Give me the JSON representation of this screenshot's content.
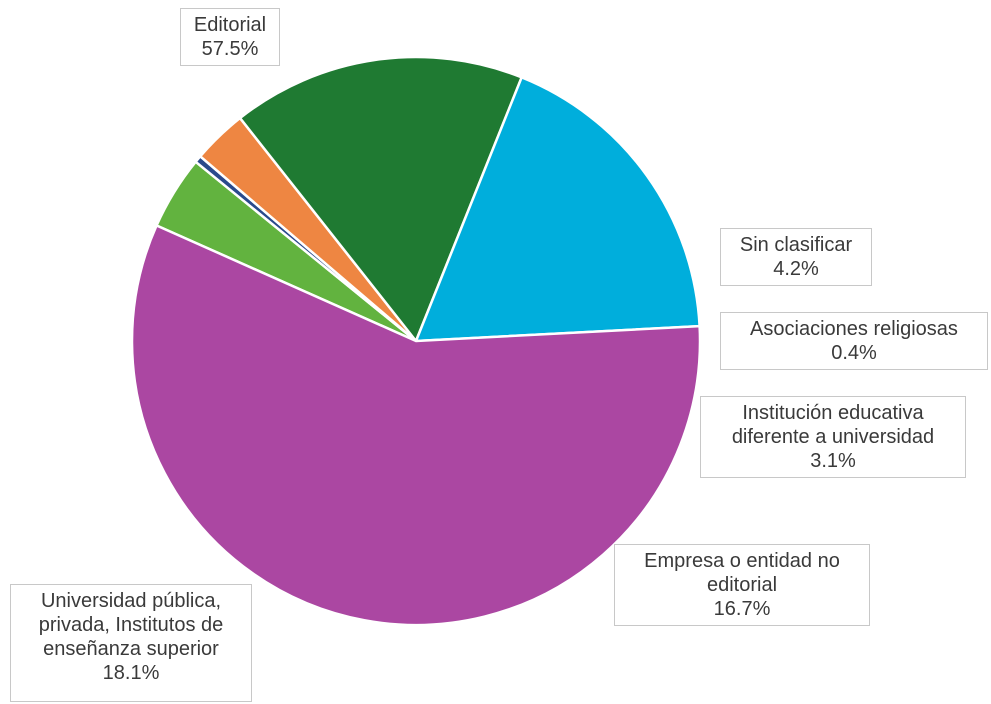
{
  "chart_data": {
    "type": "pie",
    "title": "",
    "start_angle_deg": 294,
    "direction": "clockwise",
    "slices": [
      {
        "label_lines": [
          "Sin clasificar"
        ],
        "value": 4.2,
        "value_text": "4.2%",
        "color": "#62b33f"
      },
      {
        "label_lines": [
          "Asociaciones religiosas"
        ],
        "value": 0.4,
        "value_text": "0.4%",
        "color": "#2a4a8c"
      },
      {
        "label_lines": [
          "Institución educativa",
          "diferente a universidad"
        ],
        "value": 3.1,
        "value_text": "3.1%",
        "color": "#ee8642"
      },
      {
        "label_lines": [
          "Empresa o entidad no",
          "editorial"
        ],
        "value": 16.7,
        "value_text": "16.7%",
        "color": "#1f7a32"
      },
      {
        "label_lines": [
          "Universidad pública,",
          "privada, Institutos de",
          "enseñanza superior"
        ],
        "value": 18.1,
        "value_text": "18.1%",
        "color": "#00aedc"
      },
      {
        "label_lines": [
          "Editorial"
        ],
        "value": 57.5,
        "value_text": "57.5%",
        "color": "#ab47a2"
      }
    ]
  }
}
